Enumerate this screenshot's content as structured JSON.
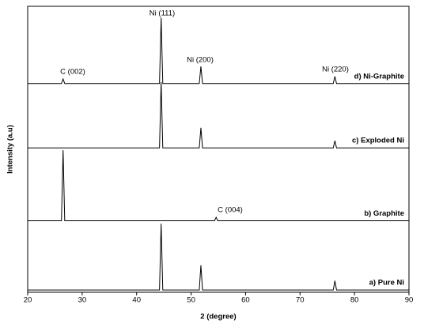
{
  "chart_data": {
    "type": "line",
    "x_label": "2 (degree)",
    "y_label": "Intensity (a.u)",
    "xlim": [
      20,
      90
    ],
    "xticks": [
      20,
      30,
      40,
      50,
      60,
      70,
      80,
      90
    ],
    "ylim": [
      0,
      100
    ],
    "series": [
      {
        "name": "a) Pure Ni",
        "color": "#000000",
        "x": [
          20,
          44.2,
          44.5,
          44.8,
          51.5,
          51.8,
          52.1,
          76.1,
          76.4,
          76.7,
          90
        ],
        "values": [
          0.8,
          0.8,
          24,
          0.8,
          0.8,
          9.4,
          0.8,
          0.8,
          4,
          0.8,
          0.8
        ]
      },
      {
        "name": "b) Graphite",
        "color": "#000000",
        "x": [
          20,
          26.2,
          26.5,
          26.8,
          54.3,
          54.6,
          54.9,
          90
        ],
        "values": [
          25,
          25,
          49.7,
          25,
          25,
          26.2,
          25,
          25
        ]
      },
      {
        "name": "c) Exploded Ni",
        "color": "#000000",
        "x": [
          20,
          44.2,
          44.5,
          44.8,
          51.5,
          51.8,
          52.1,
          76.1,
          76.4,
          76.7,
          90
        ],
        "values": [
          50.5,
          50.5,
          73.5,
          50.5,
          50.5,
          57.5,
          50.5,
          50.5,
          53,
          50.5,
          50.5
        ]
      },
      {
        "name": "d) Ni-Graphite",
        "color": "#000000",
        "x": [
          20,
          26.2,
          26.5,
          26.8,
          44.2,
          44.5,
          44.8,
          51.5,
          51.8,
          52.1,
          76.1,
          76.4,
          76.7,
          90
        ],
        "values": [
          73,
          73,
          74.6,
          73,
          73,
          96,
          73,
          73,
          79,
          73,
          73,
          75.5,
          73,
          73
        ]
      }
    ],
    "annotations": [
      "C (002)",
      "Ni (111)",
      "Ni (200)",
      "Ni (220)",
      "C (004)"
    ]
  }
}
